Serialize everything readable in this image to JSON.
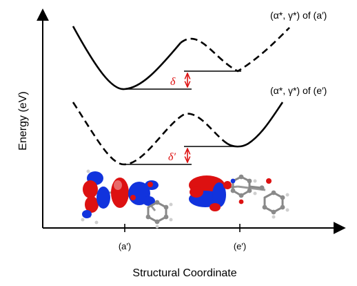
{
  "axes": {
    "y_label": "Energy (eV)",
    "x_label": "Structural Coordinate",
    "x_ticks": [
      "(a′)",
      "(e′)"
    ]
  },
  "curves": {
    "upper_label": "(α*, γ*) of (a′)",
    "lower_label": "(α*, γ*) of (e′)"
  },
  "gaps": {
    "upper": "δ",
    "lower": "δ′"
  },
  "colors": {
    "curve": "#000000",
    "gap_marker": "#dd1111",
    "orbital_positive": "#dd1111",
    "orbital_negative": "#1133dd",
    "atom": "#8a8a8a"
  }
}
